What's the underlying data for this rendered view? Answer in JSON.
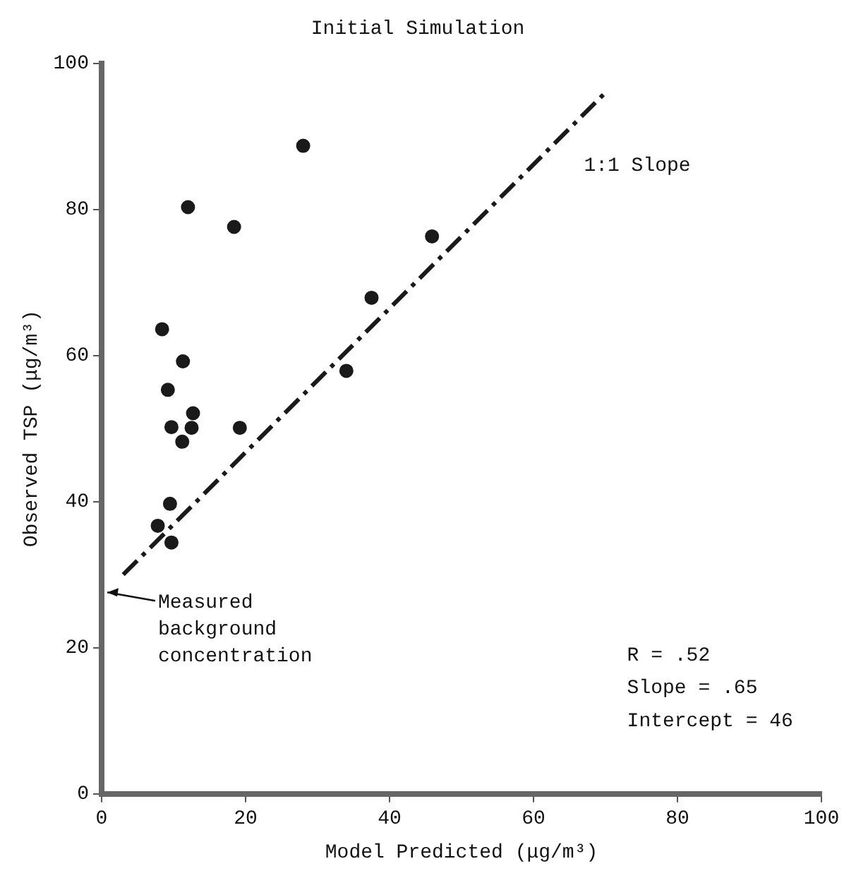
{
  "chart_data": {
    "type": "scatter",
    "title": "Initial Simulation",
    "xlabel": "Model Predicted (μg/m³)",
    "ylabel": "Observed TSP (μg/m³)",
    "x": [
      28,
      12,
      18.4,
      45.9,
      37.5,
      34,
      8.4,
      11.3,
      9.2,
      12.7,
      12.5,
      9.7,
      11.2,
      19.2,
      9.5,
      7.8,
      9.7
    ],
    "series": [
      {
        "color": "#1a1a1a",
        "values": [
          88.7,
          80.3,
          77.6,
          76.3,
          67.9,
          57.9,
          63.6,
          59.2,
          55.3,
          52.1,
          50.1,
          50.2,
          48.2,
          50.1,
          39.7,
          36.7,
          34.4
        ]
      },
      {
        "type": "line",
        "color": "#1a1a1a",
        "x": [
          3,
          70
        ],
        "values": [
          30,
          96
        ],
        "line_style": "dashed",
        "marker": "none"
      }
    ],
    "xlim": [
      0,
      100
    ],
    "ylim": [
      0,
      100
    ],
    "xticks": [
      0,
      20,
      40,
      60,
      80,
      100
    ],
    "yticks": [
      0,
      20,
      40,
      60,
      80,
      100
    ],
    "marker": "circle",
    "grid": false,
    "legend": false,
    "annotations": [
      "1:1 Slope",
      "Measured background concentration",
      "R = .52",
      "Slope = .65",
      "Intercept = 46"
    ]
  }
}
